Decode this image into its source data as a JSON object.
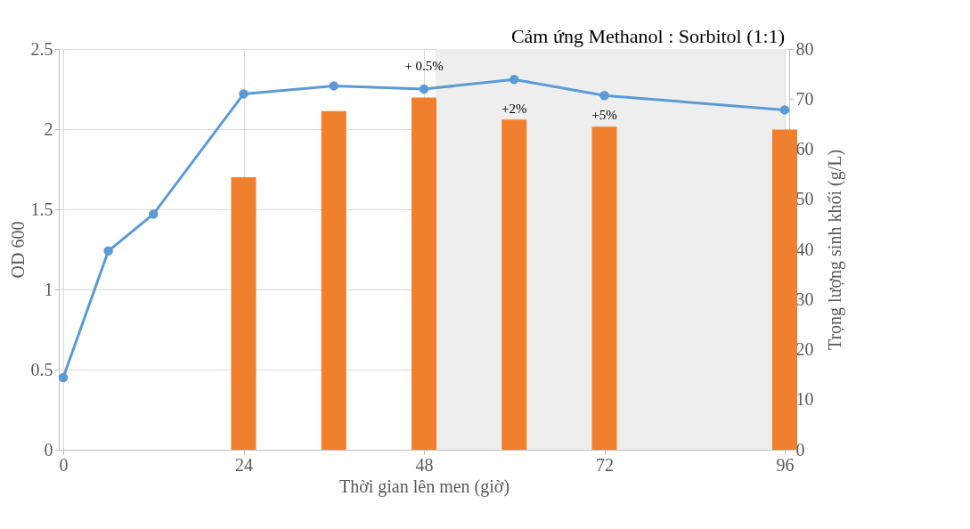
{
  "chart_data": {
    "type": "line",
    "xlabel": "Thời gian lên men (giờ)",
    "ylabel": "OD 600",
    "y2label": "Trọng lượng sinh khối (g/L)",
    "x": [
      0,
      6,
      12,
      24,
      36,
      48,
      60,
      72,
      96
    ],
    "series": [
      {
        "color": "#5b9bd5",
        "values": [
          0.45,
          1.24,
          1.47,
          2.22,
          2.27,
          2.25,
          2.31,
          2.21,
          2.12
        ]
      },
      {
        "type": "bar",
        "axis": "y2",
        "color": "#f07f2e",
        "x": [
          24,
          36,
          48,
          60,
          72,
          96
        ],
        "values": [
          54.4,
          67.6,
          70.3,
          65.9,
          64.5,
          63.9
        ]
      }
    ],
    "xlim": [
      0,
      96
    ],
    "xticks": [
      0,
      24,
      48,
      72,
      96
    ],
    "ylim": [
      0,
      2.5
    ],
    "yticks": [
      0,
      0.5,
      1,
      1.5,
      2,
      2.5
    ],
    "y2lim": [
      0,
      80
    ],
    "y2ticks": [
      0,
      10,
      20,
      30,
      40,
      50,
      60,
      70,
      80
    ],
    "bands": [
      {
        "axis": "x",
        "from": 49.5,
        "to": 96,
        "label": "Cảm ứng Methanol : Sorbitol (1:1)",
        "color": "#eeeeee"
      }
    ],
    "annotations": [
      {
        "text": "+ 0.5%",
        "x": 48,
        "y": 2.25
      },
      {
        "text": "+2%",
        "x": 60,
        "y": 2.06
      },
      {
        "text": "+5%",
        "x": 72,
        "y": 2.02
      }
    ],
    "grid": true,
    "marker": "circle",
    "line_style": "solid"
  }
}
